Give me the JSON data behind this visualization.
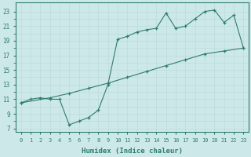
{
  "line1_x": [
    0,
    3,
    5,
    7,
    9,
    11,
    13,
    15,
    17,
    19,
    21,
    23
  ],
  "line1_y": [
    10.5,
    11.2,
    11.8,
    12.5,
    13.2,
    14.0,
    14.8,
    15.6,
    16.4,
    17.2,
    17.6,
    18.0
  ],
  "line2_x": [
    0,
    1,
    2,
    3,
    4,
    5,
    6,
    7,
    8,
    9,
    10,
    11,
    12,
    13,
    14,
    15,
    16,
    17,
    18,
    19,
    20,
    21,
    22,
    23
  ],
  "line2_y": [
    10.5,
    11.0,
    11.2,
    11.0,
    11.0,
    7.5,
    8.0,
    8.5,
    9.5,
    13.0,
    19.2,
    19.6,
    20.2,
    20.5,
    20.7,
    22.8,
    20.7,
    21.0,
    22.0,
    23.0,
    23.2,
    21.5,
    22.5,
    18.0
  ],
  "color": "#2e7d6e",
  "bg_color": "#cde8e8",
  "grid_color": "#b8d8d8",
  "grid_minor_color": "#c8e4e4",
  "xlabel": "Humidex (Indice chaleur)",
  "xlim": [
    -0.5,
    23.5
  ],
  "ylim": [
    6.5,
    24.2
  ],
  "xticks": [
    0,
    1,
    2,
    3,
    4,
    5,
    6,
    7,
    8,
    9,
    10,
    11,
    12,
    13,
    14,
    15,
    16,
    17,
    18,
    19,
    20,
    21,
    22,
    23
  ],
  "yticks": [
    7,
    9,
    11,
    13,
    15,
    17,
    19,
    21,
    23
  ],
  "label_fontsize": 6.5,
  "tick_fontsize": 5.5
}
